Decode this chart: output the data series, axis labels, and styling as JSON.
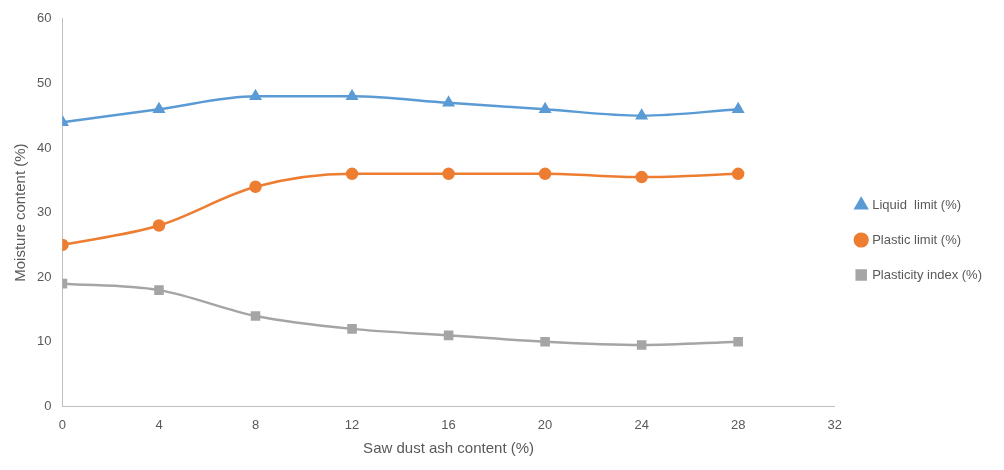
{
  "chart_data": {
    "type": "line",
    "xlabel": "Saw dust ash content (%)",
    "ylabel": "Moisture content (%)",
    "x": [
      0,
      4,
      8,
      12,
      16,
      20,
      24,
      28
    ],
    "xlim": [
      0,
      32
    ],
    "xticks": [
      0,
      4,
      8,
      12,
      16,
      20,
      24,
      28,
      32
    ],
    "ylim": [
      0,
      60
    ],
    "yticks": [
      0,
      10,
      20,
      30,
      40,
      50,
      60
    ],
    "grid": false,
    "legend": "right",
    "series": [
      {
        "name": "Liquid  limit (%)",
        "color": "#5b9bd5",
        "marker": "triangle",
        "values": [
          44,
          46,
          48,
          48,
          47,
          46,
          45,
          46
        ]
      },
      {
        "name": "Plastic limit (%)",
        "color": "#ed7d31",
        "marker": "circle",
        "values": [
          25,
          28,
          34,
          36,
          36,
          36,
          35.5,
          36
        ]
      },
      {
        "name": "Plasticity index (%)",
        "color": "#a5a5a5",
        "marker": "square",
        "values": [
          19,
          18,
          14,
          12,
          11,
          10,
          9.5,
          10
        ]
      }
    ]
  }
}
